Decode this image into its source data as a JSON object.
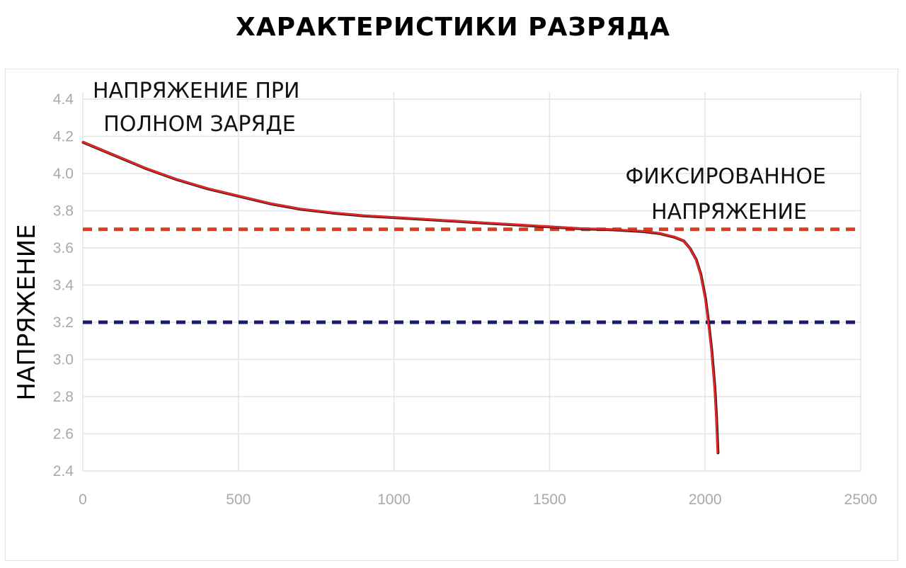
{
  "chart_data": {
    "type": "line",
    "title": "ХАРАКТЕРИСТИКИ РАЗРЯДА",
    "xlabel": "",
    "ylabel": "НАПРЯЖЕНИЕ",
    "xlim": [
      0,
      2500
    ],
    "ylim": [
      2.4,
      4.4
    ],
    "x_ticks": [
      "0",
      "500",
      "1000",
      "1500",
      "2000",
      "2500"
    ],
    "y_ticks": [
      "2.4",
      "2.6",
      "2.8",
      "3.0",
      "3.2",
      "3.4",
      "3.6",
      "3.8",
      "4.0",
      "4.2",
      "4.4"
    ],
    "grid": true,
    "series": [
      {
        "color": "#ee2222",
        "x": [
          0,
          100,
          200,
          300,
          400,
          500,
          600,
          700,
          800,
          900,
          1000,
          1100,
          1200,
          1300,
          1400,
          1500,
          1600,
          1700,
          1800,
          1850,
          1900,
          1930,
          1950,
          1970,
          1985,
          2000,
          2010,
          2020,
          2030,
          2035,
          2040
        ],
        "y": [
          4.17,
          4.1,
          4.03,
          3.97,
          3.92,
          3.88,
          3.84,
          3.81,
          3.79,
          3.775,
          3.765,
          3.755,
          3.745,
          3.735,
          3.725,
          3.715,
          3.705,
          3.7,
          3.69,
          3.68,
          3.66,
          3.64,
          3.6,
          3.54,
          3.46,
          3.33,
          3.2,
          3.05,
          2.85,
          2.7,
          2.5
        ]
      }
    ],
    "reference_lines": [
      {
        "y": 3.7,
        "color": "#e03a1a"
      },
      {
        "y": 3.2,
        "color": "#1a1a6e"
      }
    ],
    "annotations": [
      {
        "lines": [
          "НАПРЯЖЕНИЕ ПРИ",
          "ПОЛНОМ ЗАРЯДЕ"
        ]
      },
      {
        "lines": [
          "ФИКСИРОВАННОЕ",
          "НАПРЯЖЕНИЕ"
        ]
      }
    ]
  }
}
